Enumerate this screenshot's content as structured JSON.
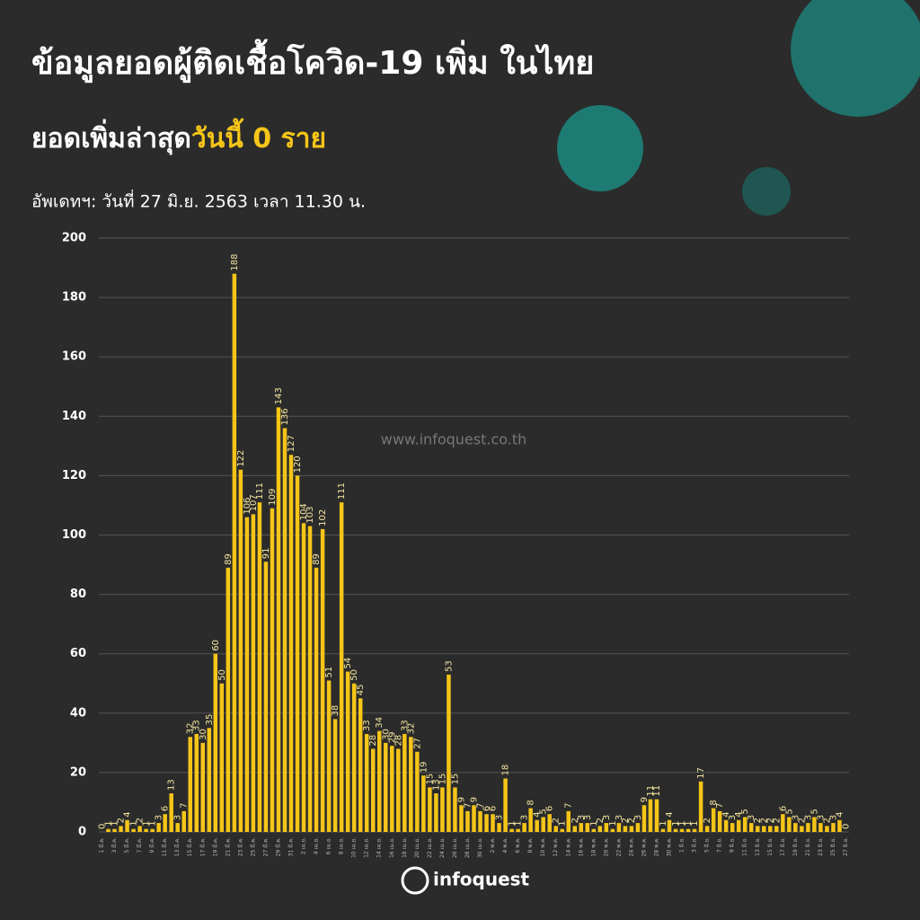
{
  "chart_data": {
    "type": "bar",
    "title": "ข้อมูลยอดผู้ติดเชื้อโควิด-19 เพิ่ม ในไทย",
    "subtitle": {
      "prefix": "ยอดเพิ่มล่าสุด",
      "highlight": "วันนี้ 0 ราย"
    },
    "update": "อัพเดทฯ: วันที่  27 มิ.ย. 2563 เวลา 11.30 น.",
    "watermark": "www.infoquest.co.th",
    "logo": "infoquest",
    "color": "#f5c518",
    "grid": true,
    "ylim": [
      0,
      200
    ],
    "yticks": [
      0,
      20,
      40,
      60,
      80,
      100,
      120,
      140,
      160,
      180,
      200
    ],
    "categories": [
      "1 มี.ค.",
      null,
      "3 มี.ค.",
      null,
      "5 มี.ค.",
      null,
      "7 มี.ค.",
      null,
      "9 มี.ค.",
      null,
      "11 มี.ค.",
      null,
      "13 มี.ค.",
      null,
      "15 มี.ค.",
      null,
      "17 มี.ค.",
      null,
      "19 มี.ค.",
      null,
      "21 มี.ค.",
      null,
      "23 มี.ค.",
      null,
      "25 มี.ค.",
      null,
      "27 มี.ค.",
      null,
      "29 มี.ค.",
      null,
      "31 มี.ค.",
      null,
      "2 เม.ย.",
      null,
      "4 เม.ย.",
      null,
      "6 เม.ย.",
      null,
      "8 เม.ย.",
      null,
      "10 เม.ย.",
      null,
      "12 เม.ย.",
      null,
      "14 เม.ย.",
      null,
      "16 เม.ย.",
      null,
      "18 เม.ย.",
      null,
      "20 เม.ย.",
      null,
      "22 เม.ย.",
      null,
      "24 เม.ย.",
      null,
      "26 เม.ย.",
      null,
      "28 เม.ย.",
      null,
      "30 เม.ย.",
      null,
      "2 พ.ค.",
      null,
      "4 พ.ค.",
      null,
      "6 พ.ค.",
      null,
      "8 พ.ค.",
      null,
      "10 พ.ค.",
      null,
      "12 พ.ค.",
      null,
      "14 พ.ค.",
      null,
      "16 พ.ค.",
      null,
      "18 พ.ค.",
      null,
      "20 พ.ค.",
      null,
      "22 พ.ค.",
      null,
      "24 พ.ค.",
      null,
      "26 พ.ค.",
      null,
      "28 พ.ค.",
      null,
      "30 พ.ค.",
      null,
      "1 มิ.ย.",
      null,
      "3 มิ.ย.",
      null,
      "5 มิ.ย.",
      null,
      "7 มิ.ย.",
      null,
      "9 มิ.ย.",
      null,
      "11 มิ.ย.",
      null,
      "13 มิ.ย.",
      null,
      "15 มิ.ย.",
      null,
      "17 มิ.ย.",
      null,
      "19 มิ.ย.",
      null,
      "21 มิ.ย.",
      null,
      "23 มิ.ย.",
      null,
      "25 มิ.ย.",
      null,
      "27 มิ.ย."
    ],
    "values": [
      0,
      1,
      1,
      2,
      4,
      1,
      2,
      1,
      1,
      3,
      6,
      13,
      3,
      7,
      32,
      33,
      30,
      35,
      60,
      50,
      89,
      188,
      122,
      106,
      107,
      111,
      91,
      109,
      143,
      136,
      127,
      120,
      104,
      103,
      89,
      102,
      51,
      38,
      111,
      54,
      50,
      45,
      33,
      28,
      34,
      30,
      29,
      28,
      33,
      32,
      27,
      19,
      15,
      13,
      15,
      53,
      15,
      9,
      7,
      9,
      7,
      6,
      6,
      3,
      18,
      1,
      1,
      3,
      8,
      4,
      5,
      6,
      2,
      1,
      7,
      2,
      3,
      3,
      1,
      2,
      3,
      1,
      3,
      2,
      2,
      3,
      9,
      11,
      11,
      1,
      4,
      1,
      1,
      1,
      1,
      17,
      2,
      8,
      7,
      4,
      3,
      4,
      5,
      3,
      2,
      2,
      2,
      2,
      6,
      5,
      3,
      2,
      3,
      5,
      3,
      2,
      3,
      4,
      0
    ]
  }
}
